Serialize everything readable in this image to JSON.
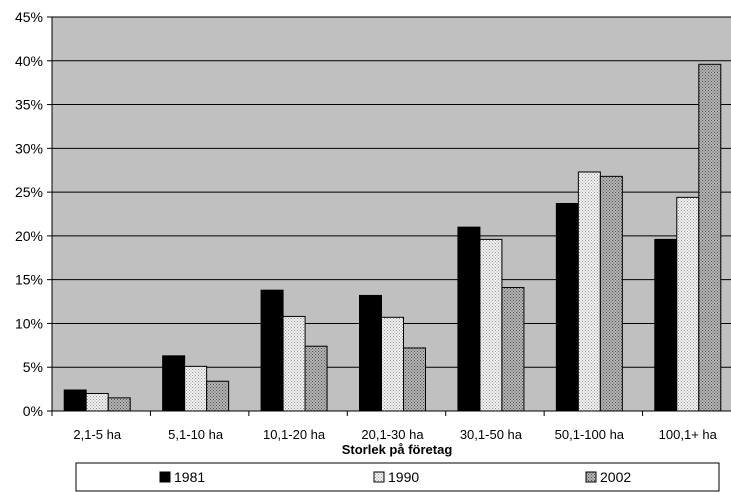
{
  "chart_data": {
    "type": "bar",
    "title": "",
    "xlabel": "Storlek på företag",
    "ylabel": "",
    "ylim": [
      0,
      45
    ],
    "yticks": [
      0,
      5,
      10,
      15,
      20,
      25,
      30,
      35,
      40,
      45
    ],
    "yticks_labels": [
      "0%",
      "5%",
      "10%",
      "15%",
      "20%",
      "25%",
      "30%",
      "35%",
      "40%",
      "45%"
    ],
    "grid": "horizontal",
    "legend_position": "bottom",
    "categories": [
      "2,1-5 ha",
      "5,1-10 ha",
      "10,1-20 ha",
      "20,1-30 ha",
      "30,1-50 ha",
      "50,1-100 ha",
      "100,1+ ha"
    ],
    "series": [
      {
        "name": "1981",
        "values": [
          2.4,
          6.3,
          13.8,
          13.2,
          21.0,
          23.7,
          19.6
        ],
        "color": "#000000",
        "pattern": "solid"
      },
      {
        "name": "1990",
        "values": [
          2.0,
          5.1,
          10.8,
          10.7,
          19.6,
          27.3,
          24.4
        ],
        "color": "#e6e6e6",
        "pattern": "light-dots"
      },
      {
        "name": "2002",
        "values": [
          1.5,
          3.4,
          7.4,
          7.2,
          14.1,
          26.8,
          39.6
        ],
        "color": "#a8a8a8",
        "pattern": "dark-dots"
      }
    ],
    "plot_background": "#c0c0c0"
  }
}
